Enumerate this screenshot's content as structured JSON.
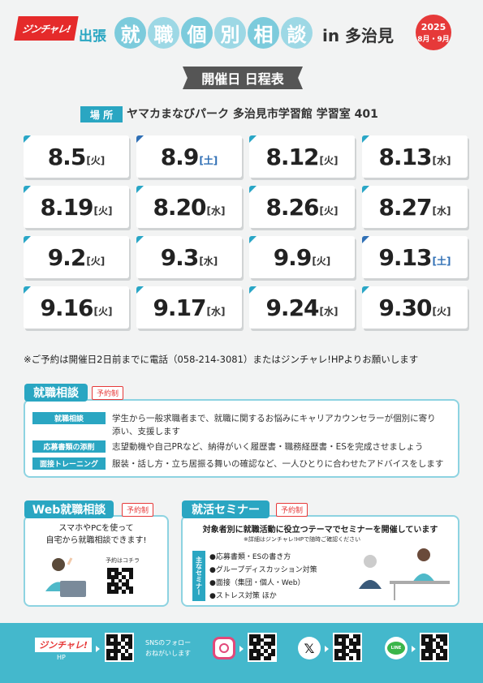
{
  "header": {
    "logo": "ジンチャレ!",
    "logo_small": "ジンチャレ!",
    "dispatch": "出張",
    "title_chars": [
      "就",
      "職",
      "個",
      "別",
      "相",
      "談"
    ],
    "location_suffix": "in 多治見",
    "year": "2025",
    "months": "8月・9月"
  },
  "schedule_heading": "開催日 日程表",
  "venue": {
    "label": "場 所",
    "name": "ヤマカまなびパーク 多治見市学習館 学習室 401"
  },
  "dates": [
    {
      "date": "8.5",
      "weekday": "[火]",
      "sat": false
    },
    {
      "date": "8.9",
      "weekday": "[土]",
      "sat": true
    },
    {
      "date": "8.12",
      "weekday": "[火]",
      "sat": false
    },
    {
      "date": "8.13",
      "weekday": "[水]",
      "sat": false
    },
    {
      "date": "8.19",
      "weekday": "[火]",
      "sat": false
    },
    {
      "date": "8.20",
      "weekday": "[水]",
      "sat": false
    },
    {
      "date": "8.26",
      "weekday": "[火]",
      "sat": false
    },
    {
      "date": "8.27",
      "weekday": "[水]",
      "sat": false
    },
    {
      "date": "9.2",
      "weekday": "[火]",
      "sat": false
    },
    {
      "date": "9.3",
      "weekday": "[水]",
      "sat": false
    },
    {
      "date": "9.9",
      "weekday": "[火]",
      "sat": false
    },
    {
      "date": "9.13",
      "weekday": "[土]",
      "sat": true
    },
    {
      "date": "9.16",
      "weekday": "[火]",
      "sat": false
    },
    {
      "date": "9.17",
      "weekday": "[水]",
      "sat": false
    },
    {
      "date": "9.24",
      "weekday": "[水]",
      "sat": false
    },
    {
      "date": "9.30",
      "weekday": "[火]",
      "sat": false
    }
  ],
  "reservation_note": "※ご予約は開催日2日前までに電話（058-214-3081）またはジンチャレ!HPよりお願いします",
  "consultation": {
    "title": "就職相談",
    "badge": "予約制",
    "rows": [
      {
        "label": "就職相談",
        "text": "学生から一般求職者まで、就職に関するお悩みにキャリアカウンセラーが個別に寄り",
        "text2": "添い、支援します"
      },
      {
        "label": "応募書類の添削",
        "text": "志望動機や自己PRなど、納得がいく履歴書・職務経歴書・ESを完成させましょう"
      },
      {
        "label": "面接トレーニング",
        "text": "服装・話し方・立ち居振る舞いの確認など、一人ひとりに合わせたアドバイスをします"
      }
    ]
  },
  "web": {
    "title": "Web就職相談",
    "badge": "予約制",
    "line1": "スマホやPCを使って",
    "line2": "自宅から就職相談できます!",
    "qr_caption": "予約はコチラ"
  },
  "seminar": {
    "title": "就活セミナー",
    "badge": "予約制",
    "lead": "対象者別に就職活動に役立つテーマでセミナーを開催しています",
    "sub": "※詳細はジンチャレ!HPで随時ご確認ください",
    "side_label": "主なセミナー",
    "items": [
      "●応募書類・ESの書き方",
      "●グループディスカッション対策",
      "●面接（集団・個人・Web）",
      "●ストレス対策 ほか"
    ]
  },
  "footer": {
    "logo": "ジンチャレ!",
    "hp_label": "HP",
    "sns_line1": "SNSのフォロー",
    "sns_line2": "おねがいします",
    "x_glyph": "𝕏",
    "line_glyph": "LINE"
  },
  "colors": {
    "accent": "#2aa6c2",
    "red": "#e63939",
    "saturday": "#2f6fb5"
  }
}
